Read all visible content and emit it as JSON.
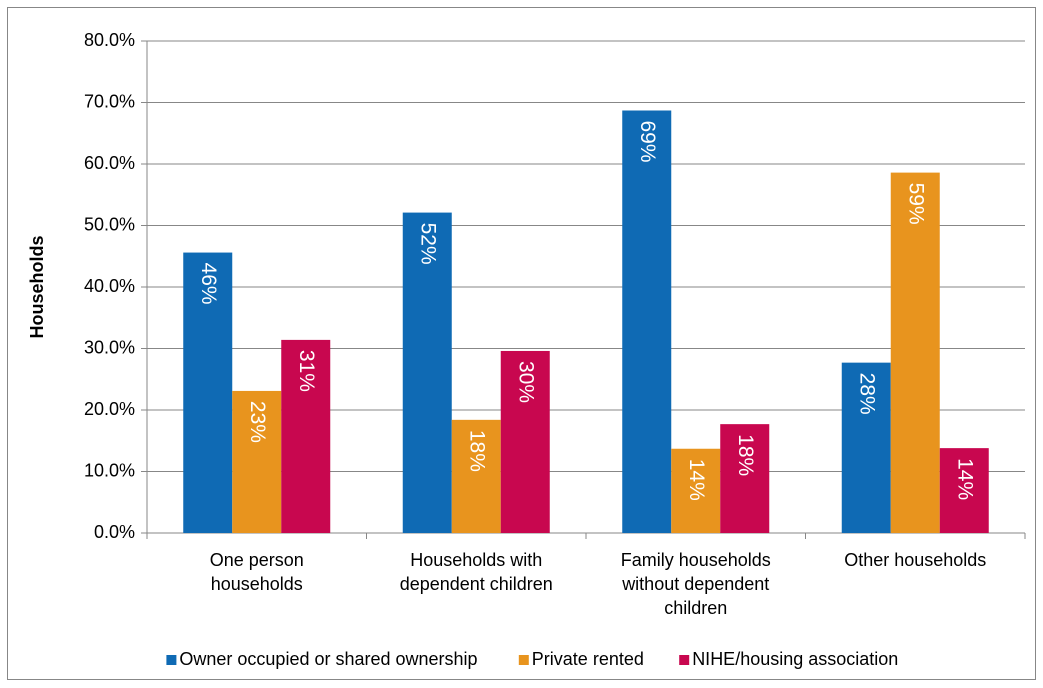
{
  "chart_data": {
    "type": "bar",
    "y_axis_label": "Households",
    "categories": [
      [
        "One person",
        "households"
      ],
      [
        "Households with",
        "dependent children"
      ],
      [
        "Family households",
        "without dependent",
        "children"
      ],
      [
        "Other households"
      ]
    ],
    "series": [
      {
        "name": "Owner occupied or shared ownership",
        "color": "#0f6ab4",
        "values": [
          45.6,
          52.1,
          68.7,
          27.7
        ],
        "value_labels": [
          "46%",
          "52%",
          "69%",
          "28%"
        ]
      },
      {
        "name": "Private rented",
        "color": "#e8941e",
        "values": [
          23.1,
          18.4,
          13.7,
          58.6
        ],
        "value_labels": [
          "23%",
          "18%",
          "14%",
          "59%"
        ]
      },
      {
        "name": "NIHE/housing association",
        "color": "#c8074f",
        "values": [
          31.4,
          29.6,
          17.7,
          13.8
        ],
        "value_labels": [
          "31%",
          "30%",
          "18%",
          "14%"
        ]
      }
    ],
    "ylim": [
      0,
      80
    ],
    "yticks": [
      {
        "value": 0,
        "label": "0.0%"
      },
      {
        "value": 10,
        "label": "10.0%"
      },
      {
        "value": 20,
        "label": "20.0%"
      },
      {
        "value": 30,
        "label": "30.0%"
      },
      {
        "value": 40,
        "label": "40.0%"
      },
      {
        "value": 50,
        "label": "50.0%"
      },
      {
        "value": 60,
        "label": "60.0%"
      },
      {
        "value": 70,
        "label": "70.0%"
      },
      {
        "value": 80,
        "label": "80.0%"
      }
    ],
    "grid": true,
    "legend": "bottom"
  }
}
